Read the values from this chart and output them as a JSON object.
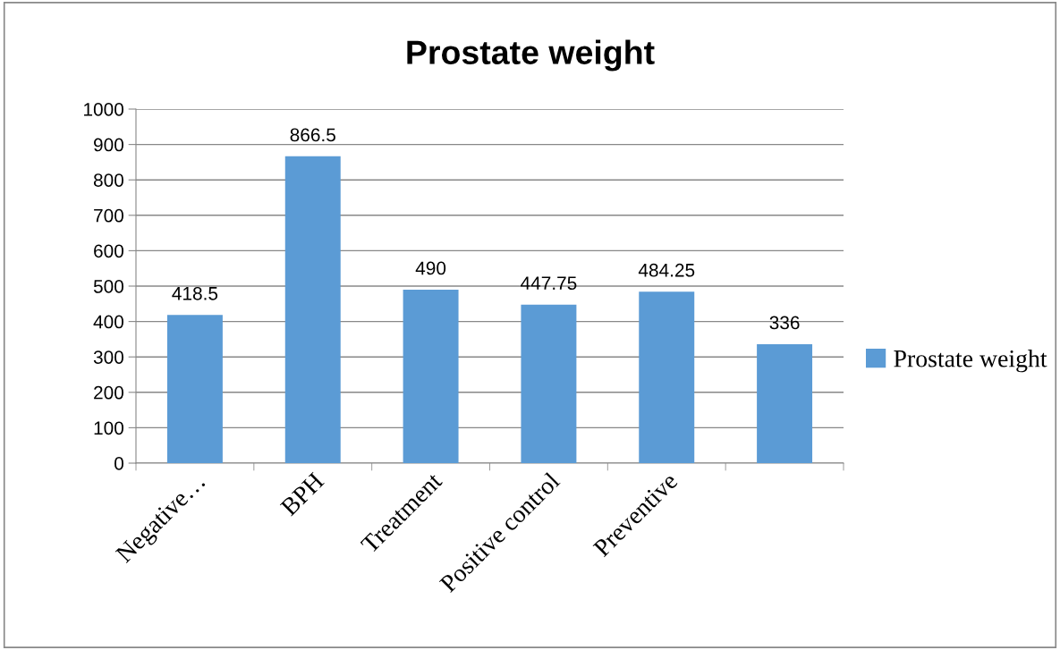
{
  "chart_data": {
    "type": "bar",
    "title": "Prostate weight",
    "categories": [
      "Negative…",
      "BPH",
      "Treatment",
      "Positive control",
      "Preventive",
      null
    ],
    "series": [
      {
        "name": "Prostate weight",
        "color": "#5b9bd5",
        "values": [
          418.5,
          866.5,
          490,
          447.75,
          484.25,
          336
        ]
      }
    ],
    "ylim": [
      0,
      1000
    ],
    "yticks": [
      0,
      100,
      200,
      300,
      400,
      500,
      600,
      700,
      800,
      900,
      1000
    ],
    "grid": "y",
    "legend": "right",
    "data_labels": true
  }
}
